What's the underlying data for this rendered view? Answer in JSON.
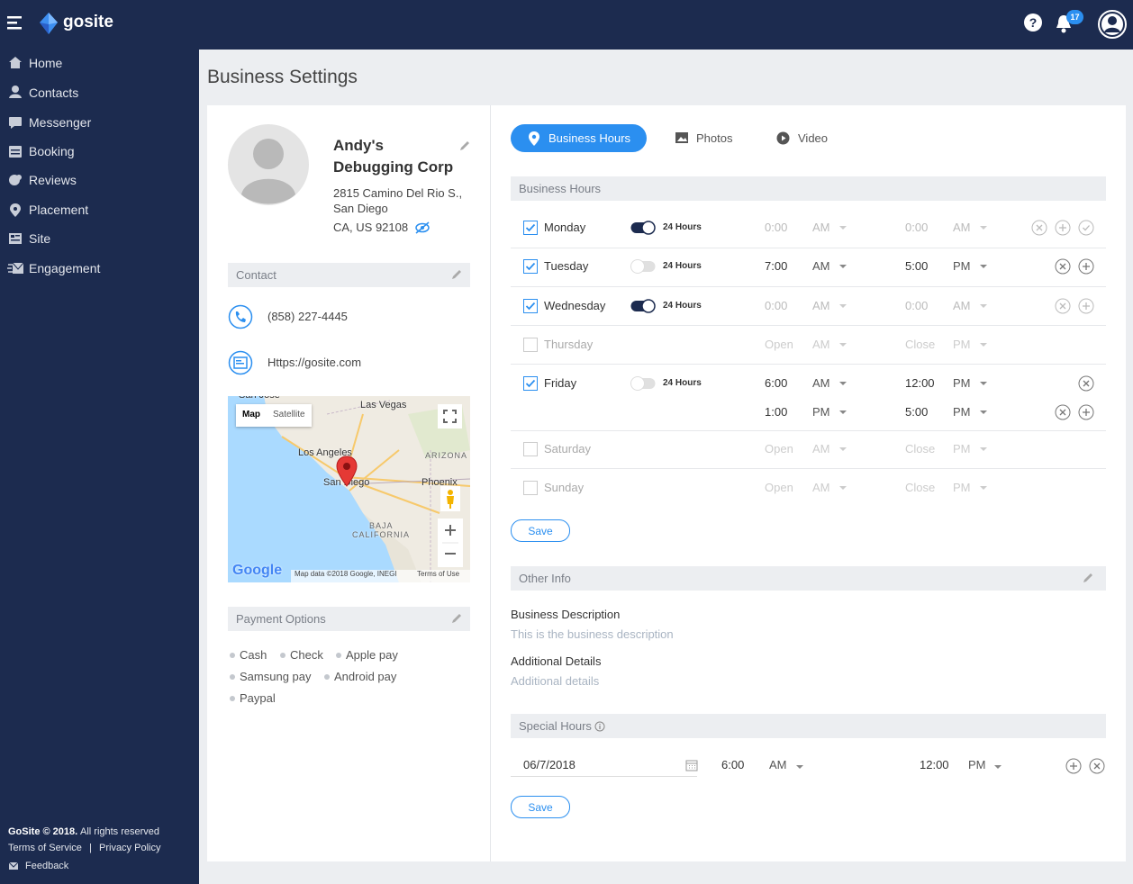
{
  "header": {
    "brand": "gosite",
    "notifications": "17"
  },
  "nav": [
    "Home",
    "Contacts",
    "Messenger",
    "Booking",
    "Reviews",
    "Placement",
    "Site",
    "Engagement"
  ],
  "footer": {
    "copyright": "GoSite © 2018.",
    "rights": "All rights reserved",
    "terms": "Terms of Service",
    "separator": "|",
    "privacy": "Privacy Policy",
    "feedback": "Feedback"
  },
  "page_title": "Business Settings",
  "profile": {
    "name": [
      "Andy's",
      "Debugging Corp"
    ],
    "address": [
      "2815 Camino Del Rio S.,",
      "San Diego",
      "CA, US 92108"
    ]
  },
  "contact": {
    "title": "Contact",
    "phone": "(858) 227-4445",
    "website": "Https://gosite.com"
  },
  "map": {
    "labels": [
      "San Jose",
      "Las Vegas",
      "Los Angeles",
      "ARIZONA",
      "San Diego",
      "Phoenix",
      "BAJA",
      "CALIFORNIA"
    ],
    "map_button": "Map",
    "satellite_button": "Satellite",
    "logo": "Google",
    "attribution": "Map data ©2018 Google, INEGI",
    "terms": "Terms of Use"
  },
  "payment": {
    "title": "Payment Options",
    "options": [
      "Cash",
      "Check",
      "Apple pay",
      "Samsung pay",
      "Android pay",
      "Paypal"
    ]
  },
  "tabs": [
    "Business Hours",
    "Photos",
    "Video"
  ],
  "hours": {
    "title": "Business Hours",
    "rows": [
      {
        "day": "Monday",
        "checked": true,
        "toggle_label": "24 Hours",
        "toggle_on": true,
        "slots": [
          [
            "0:00",
            "AM",
            "0:00",
            "AM"
          ]
        ]
      },
      {
        "day": "Tuesday",
        "checked": true,
        "toggle_label": "24 Hours",
        "toggle_on": false,
        "slots": [
          [
            "7:00",
            "AM",
            "5:00",
            "PM"
          ]
        ]
      },
      {
        "day": "Wednesday",
        "checked": true,
        "toggle_label": "24 Hours",
        "toggle_on": true,
        "slots": [
          [
            "0:00",
            "AM",
            "0:00",
            "AM"
          ]
        ]
      },
      {
        "day": "Thursday",
        "checked": false,
        "slots": [
          [
            "Open",
            "AM",
            "Close",
            "PM"
          ]
        ]
      },
      {
        "day": "Friday",
        "checked": true,
        "toggle_label": "24 Hours",
        "toggle_on": false,
        "slots": [
          [
            "6:00",
            "AM",
            "12:00",
            "PM"
          ],
          [
            "1:00",
            "PM",
            "5:00",
            "PM"
          ]
        ]
      },
      {
        "day": "Saturday",
        "checked": false,
        "slots": [
          [
            "Open",
            "AM",
            "Close",
            "PM"
          ]
        ]
      },
      {
        "day": "Sunday",
        "checked": false,
        "slots": [
          [
            "Open",
            "AM",
            "Close",
            "PM"
          ]
        ]
      }
    ],
    "save": "Save"
  },
  "other_info": {
    "title": "Other Info",
    "description_label": "Business Description",
    "description": "This is the business description",
    "details_label": "Additional Details",
    "details": "Additional details"
  },
  "special_hours": {
    "title": "Special Hours",
    "date": "06/7/2018",
    "open": "6:00",
    "open_ampm": "AM",
    "close": "12:00",
    "close_ampm": "PM",
    "save": "Save"
  }
}
